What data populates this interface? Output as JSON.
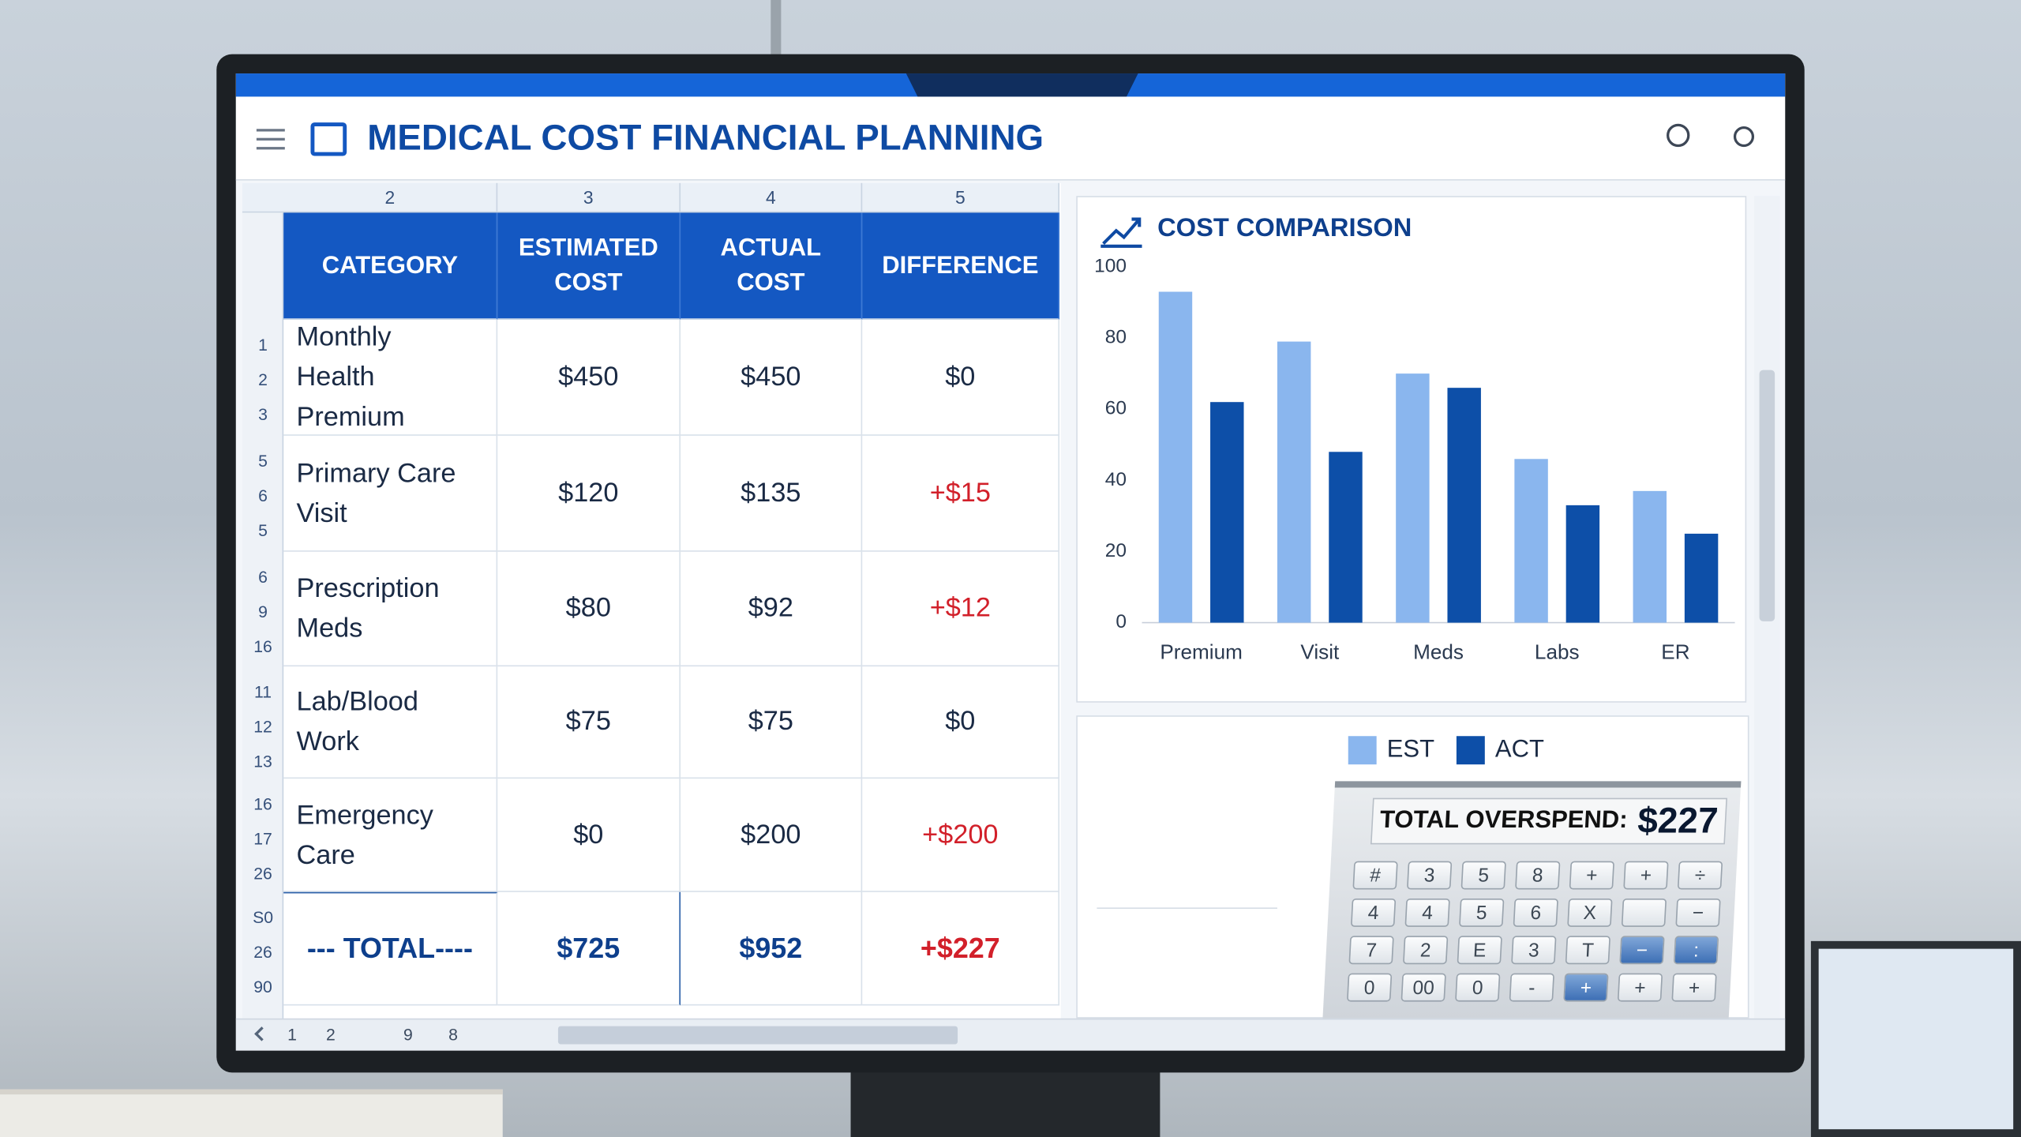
{
  "header": {
    "title": "MEDICAL COST FINANCIAL PLANNING"
  },
  "table": {
    "column_letters": [
      "2",
      "3",
      "4",
      "5"
    ],
    "headers": [
      "CATEGORY",
      "ESTIMATED COST",
      "ACTUAL COST",
      "DIFFERENCE"
    ],
    "row_numbers": [
      "1",
      "2",
      "3",
      "5",
      "6",
      "5",
      "6",
      "9",
      "16",
      "11",
      "12",
      "13",
      "16",
      "17",
      "26",
      "S0",
      "26",
      "90"
    ],
    "rows": [
      [
        "Monthly Health Premium",
        "$450",
        "$450",
        "$0"
      ],
      [
        "Primary Care Visit",
        "$120",
        "$135",
        "+$15"
      ],
      [
        "Prescription Meds",
        "$80",
        "$92",
        "+$12"
      ],
      [
        "Lab/Blood Work",
        "$75",
        "$75",
        "$0"
      ],
      [
        "Emergency Care",
        "$0",
        "$200",
        "+$200"
      ],
      [
        "--- TOTAL----",
        "$725",
        "$952",
        "+$227"
      ]
    ],
    "sheet_tabs": [
      "1",
      "2",
      "9",
      "8"
    ]
  },
  "chart_data": {
    "type": "bar",
    "title": "COST COMPARISON",
    "categories": [
      "Premium",
      "Visit",
      "Meds",
      "Labs",
      "ER"
    ],
    "series": [
      {
        "name": "EST",
        "color": "#8ab6ee",
        "values": [
          93,
          79,
          70,
          46,
          37
        ]
      },
      {
        "name": "ACT",
        "color": "#0d4fa8",
        "values": [
          62,
          48,
          66,
          33,
          25
        ]
      }
    ],
    "ylim": [
      0,
      100
    ],
    "yticks": [
      0,
      20,
      40,
      60,
      80,
      100
    ],
    "grid": false
  },
  "summary": {
    "label": "TOTAL OVERSPEND:",
    "value": "$227"
  },
  "calculator": {
    "keys": [
      [
        "#",
        "3",
        "5",
        "8",
        "+",
        "+",
        "÷"
      ],
      [
        "4",
        "4",
        "5",
        "6",
        "X",
        "−"
      ],
      [
        "7",
        "2",
        "E",
        "3",
        "T",
        "−",
        ":"
      ],
      [
        "0",
        "00",
        "0",
        "-",
        "+",
        "+",
        "+"
      ]
    ]
  }
}
